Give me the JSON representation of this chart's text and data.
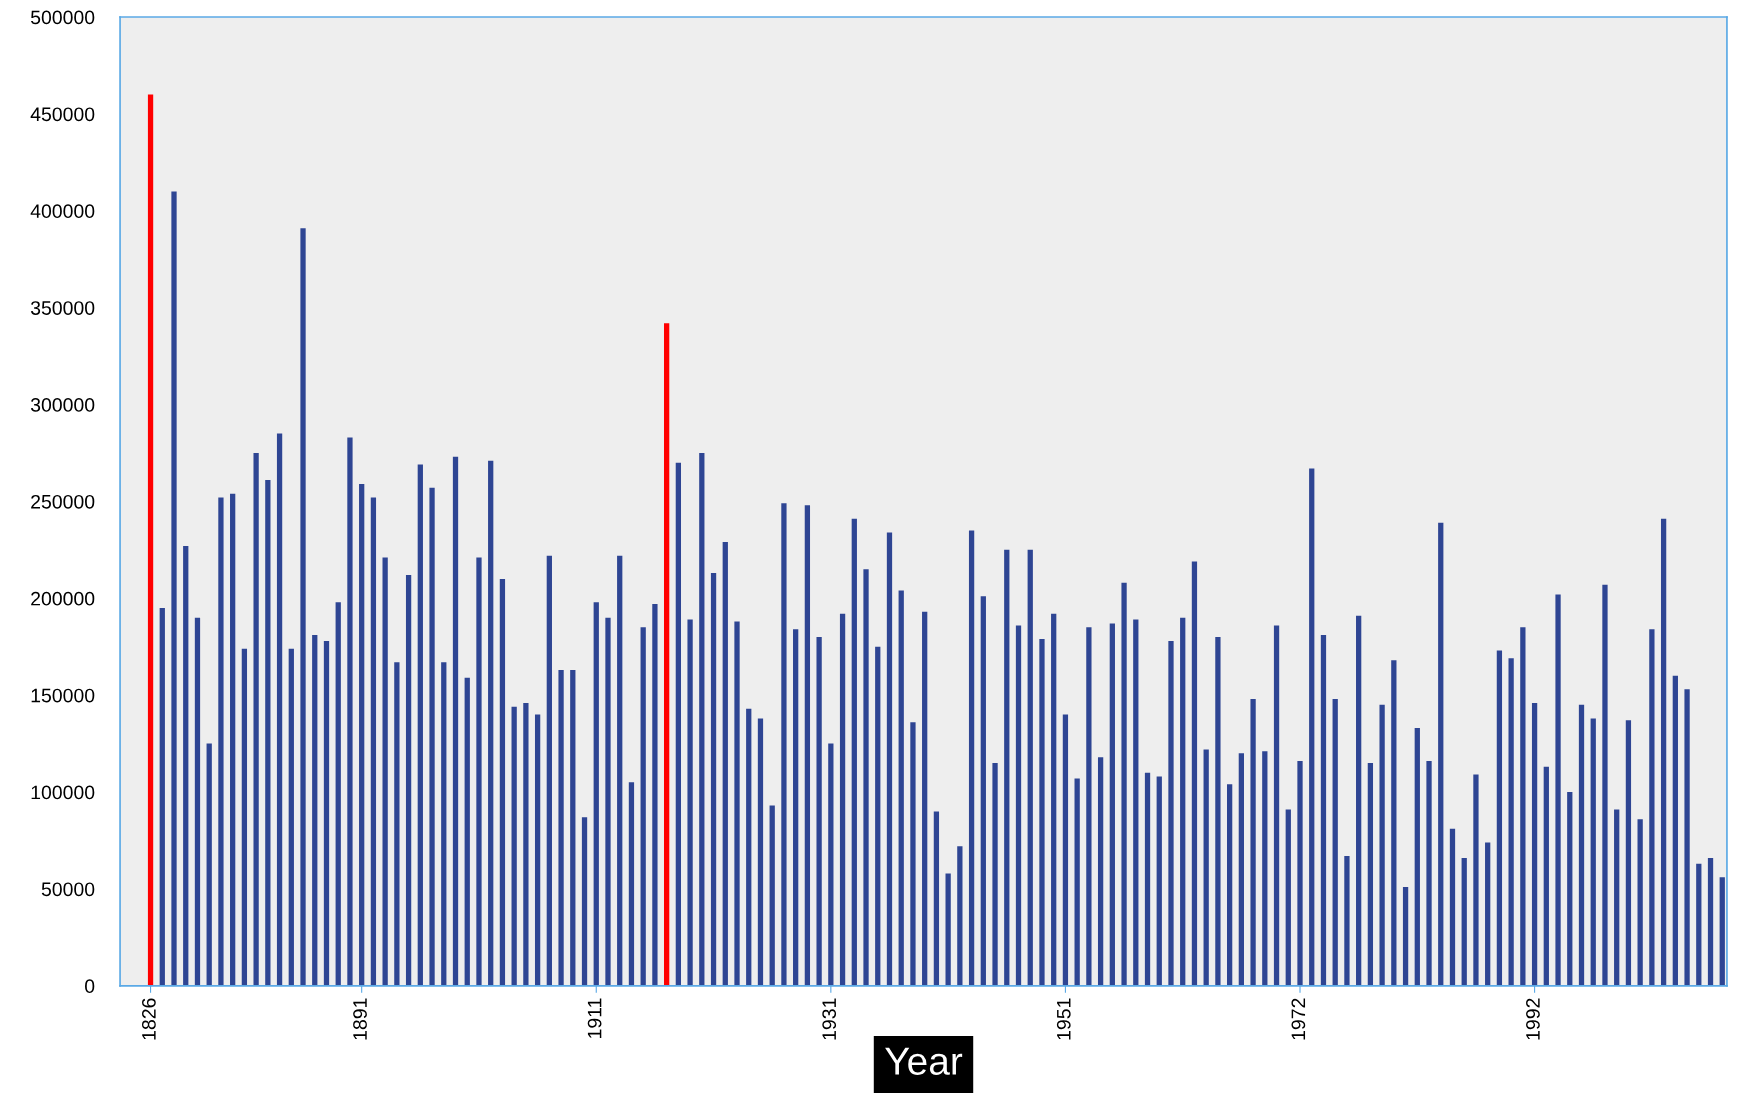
{
  "chart_data": {
    "type": "bar",
    "xlabel": "Year",
    "categories": [
      "1826",
      null,
      null,
      null,
      null,
      null,
      null,
      null,
      null,
      null,
      null,
      null,
      null,
      null,
      null,
      null,
      null,
      null,
      "1891",
      null,
      null,
      null,
      null,
      null,
      null,
      null,
      null,
      null,
      null,
      null,
      null,
      null,
      null,
      null,
      null,
      null,
      null,
      null,
      "1911",
      null,
      null,
      null,
      null,
      null,
      null,
      null,
      null,
      null,
      null,
      null,
      null,
      null,
      null,
      null,
      null,
      null,
      null,
      null,
      "1931",
      null,
      null,
      null,
      null,
      null,
      null,
      null,
      null,
      null,
      null,
      null,
      null,
      null,
      null,
      null,
      null,
      null,
      null,
      null,
      "1951",
      null,
      null,
      null,
      null,
      null,
      null,
      null,
      null,
      null,
      null,
      null,
      null,
      null,
      null,
      null,
      null,
      null,
      null,
      null,
      "1972",
      null,
      null,
      null,
      null,
      null,
      null,
      null,
      null,
      null,
      null,
      null,
      null,
      null,
      null,
      null,
      null,
      null,
      null,
      null,
      "1992",
      null,
      null,
      null,
      null,
      null,
      null,
      null,
      null,
      null,
      null,
      null,
      null,
      null,
      null,
      null,
      null
    ],
    "values": [
      460000,
      195000,
      410000,
      227000,
      190000,
      125000,
      252000,
      254000,
      174000,
      275000,
      261000,
      285000,
      174000,
      391000,
      181000,
      178000,
      198000,
      283000,
      259000,
      252000,
      221000,
      167000,
      212000,
      269000,
      257000,
      167000,
      273000,
      159000,
      221000,
      271000,
      210000,
      144000,
      146000,
      140000,
      222000,
      163000,
      163000,
      87000,
      198000,
      190000,
      222000,
      105000,
      185000,
      197000,
      342000,
      270000,
      189000,
      275000,
      213000,
      229000,
      188000,
      143000,
      138000,
      93000,
      249000,
      184000,
      248000,
      180000,
      125000,
      192000,
      241000,
      215000,
      175000,
      234000,
      204000,
      136000,
      193000,
      90000,
      58000,
      72000,
      235000,
      201000,
      115000,
      225000,
      186000,
      225000,
      179000,
      192000,
      140000,
      107000,
      185000,
      118000,
      187000,
      208000,
      189000,
      110000,
      108000,
      178000,
      190000,
      219000,
      122000,
      180000,
      104000,
      120000,
      148000,
      121000,
      186000,
      91000,
      116000,
      267000,
      181000,
      148000,
      67000,
      191000,
      115000,
      145000,
      168000,
      51000,
      133000,
      116000,
      239000,
      81000,
      66000,
      109000,
      74000,
      173000,
      169000,
      185000,
      146000,
      113000,
      202000,
      100000,
      145000,
      138000,
      207000,
      91000,
      137000,
      86000,
      184000,
      241000,
      160000,
      153000,
      63000,
      66000,
      56000
    ],
    "colors": [
      "#ff0000",
      "#2e4593",
      "#2e4593",
      "#2e4593",
      "#2e4593",
      "#2e4593",
      "#2e4593",
      "#2e4593",
      "#2e4593",
      "#2e4593",
      "#2e4593",
      "#2e4593",
      "#2e4593",
      "#2e4593",
      "#2e4593",
      "#2e4593",
      "#2e4593",
      "#2e4593",
      "#2e4593",
      "#2e4593",
      "#2e4593",
      "#2e4593",
      "#2e4593",
      "#2e4593",
      "#2e4593",
      "#2e4593",
      "#2e4593",
      "#2e4593",
      "#2e4593",
      "#2e4593",
      "#2e4593",
      "#2e4593",
      "#2e4593",
      "#2e4593",
      "#2e4593",
      "#2e4593",
      "#2e4593",
      "#2e4593",
      "#2e4593",
      "#2e4593",
      "#2e4593",
      "#2e4593",
      "#2e4593",
      "#2e4593",
      "#ff0000",
      "#2e4593",
      "#2e4593",
      "#2e4593",
      "#2e4593",
      "#2e4593",
      "#2e4593",
      "#2e4593",
      "#2e4593",
      "#2e4593",
      "#2e4593",
      "#2e4593",
      "#2e4593",
      "#2e4593",
      "#2e4593",
      "#2e4593",
      "#2e4593",
      "#2e4593",
      "#2e4593",
      "#2e4593",
      "#2e4593",
      "#2e4593",
      "#2e4593",
      "#2e4593",
      "#2e4593",
      "#2e4593",
      "#2e4593",
      "#2e4593",
      "#2e4593",
      "#2e4593",
      "#2e4593",
      "#2e4593",
      "#2e4593",
      "#2e4593",
      "#2e4593",
      "#2e4593",
      "#2e4593",
      "#2e4593",
      "#2e4593",
      "#2e4593",
      "#2e4593",
      "#2e4593",
      "#2e4593",
      "#2e4593",
      "#2e4593",
      "#2e4593",
      "#2e4593",
      "#2e4593",
      "#2e4593",
      "#2e4593",
      "#2e4593",
      "#2e4593",
      "#2e4593",
      "#2e4593",
      "#2e4593",
      "#2e4593",
      "#2e4593",
      "#2e4593",
      "#2e4593",
      "#2e4593",
      "#2e4593",
      "#2e4593",
      "#2e4593",
      "#2e4593",
      "#2e4593",
      "#2e4593",
      "#2e4593",
      "#2e4593",
      "#2e4593",
      "#2e4593",
      "#2e4593",
      "#2e4593",
      "#2e4593",
      "#2e4593",
      "#2e4593",
      "#2e4593",
      "#2e4593",
      "#2e4593",
      "#2e4593",
      "#2e4593",
      "#2e4593",
      "#2e4593",
      "#2e4593",
      "#2e4593",
      "#2e4593",
      "#2e4593",
      "#2e4593",
      "#2e4593",
      "#2e4593",
      "#2e4593",
      "#2e4593"
    ],
    "ylim": [
      0,
      500000
    ],
    "yticks": [
      0,
      50000,
      100000,
      150000,
      200000,
      250000,
      300000,
      350000,
      400000,
      450000,
      500000
    ],
    "grid": false
  }
}
